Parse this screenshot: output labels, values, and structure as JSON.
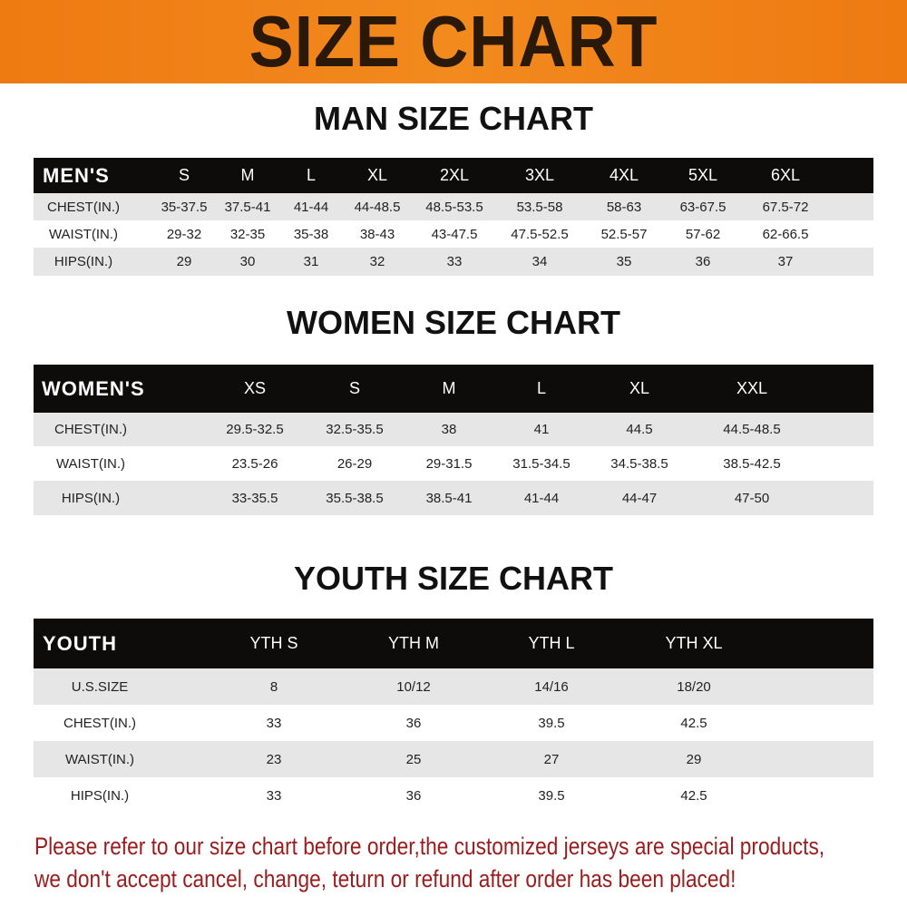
{
  "title": "SIZE CHART",
  "colors": {
    "banner": "#ee7a12",
    "header": "#0e0b0b",
    "stripe": "#e6e6e6",
    "note": "#9b1c1c"
  },
  "men": {
    "title": "MAN SIZE CHART",
    "header": [
      "MEN'S",
      "S",
      "M",
      "L",
      "XL",
      "2XL",
      "3XL",
      "4XL",
      "5XL",
      "6XL"
    ],
    "rows": [
      [
        "CHEST(IN.)",
        "35-37.5",
        "37.5-41",
        "41-44",
        "44-48.5",
        "48.5-53.5",
        "53.5-58",
        "58-63",
        "63-67.5",
        "67.5-72"
      ],
      [
        "WAIST(IN.)",
        "29-32",
        "32-35",
        "35-38",
        "38-43",
        "43-47.5",
        "47.5-52.5",
        "52.5-57",
        "57-62",
        "62-66.5"
      ],
      [
        "HIPS(IN.)",
        "29",
        "30",
        "31",
        "32",
        "33",
        "34",
        "35",
        "36",
        "37"
      ]
    ]
  },
  "women": {
    "title": "WOMEN SIZE CHART",
    "header": [
      "WOMEN'S",
      "XS",
      "S",
      "M",
      "L",
      "XL",
      "XXL"
    ],
    "rows": [
      [
        "CHEST(IN.)",
        "29.5-32.5",
        "32.5-35.5",
        "38",
        "41",
        "44.5",
        "44.5-48.5"
      ],
      [
        "WAIST(IN.)",
        "23.5-26",
        "26-29",
        "29-31.5",
        "31.5-34.5",
        "34.5-38.5",
        "38.5-42.5"
      ],
      [
        "HIPS(IN.)",
        "33-35.5",
        "35.5-38.5",
        "38.5-41",
        "41-44",
        "44-47",
        "47-50"
      ]
    ]
  },
  "youth": {
    "title": "YOUTH SIZE CHART",
    "header": [
      "YOUTH",
      "YTH S",
      "YTH M",
      "YTH L",
      "YTH XL"
    ],
    "rows": [
      [
        "U.S.SIZE",
        "8",
        "10/12",
        "14/16",
        "18/20"
      ],
      [
        "CHEST(IN.)",
        "33",
        "36",
        "39.5",
        "42.5"
      ],
      [
        "WAIST(IN.)",
        "23",
        "25",
        "27",
        "29"
      ],
      [
        "HIPS(IN.)",
        "33",
        "36",
        "39.5",
        "42.5"
      ]
    ]
  },
  "note": {
    "line1": "Please refer to our size chart before order,the customized jerseys are special products,",
    "line2": "we don't accept cancel, change, teturn or refund after order has been placed!"
  }
}
